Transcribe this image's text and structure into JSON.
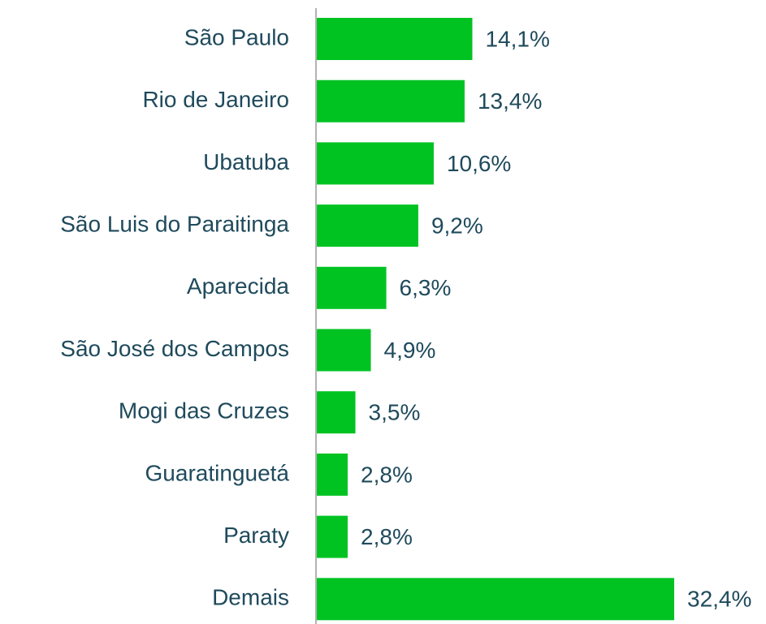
{
  "chart_data": {
    "type": "bar",
    "orientation": "horizontal",
    "categories": [
      "São Paulo",
      "Rio de Janeiro",
      "Ubatuba",
      "São Luis do Paraitinga",
      "Aparecida",
      "São José dos Campos",
      "Mogi das Cruzes",
      "Guaratinguetá",
      "Paraty",
      "Demais"
    ],
    "values": [
      14.1,
      13.4,
      10.6,
      9.2,
      6.3,
      4.9,
      3.5,
      2.8,
      2.8,
      32.4
    ],
    "value_labels": [
      "14,1%",
      "13,4%",
      "10,6%",
      "9,2%",
      "6,3%",
      "4,9%",
      "3,5%",
      "2,8%",
      "2,8%",
      "32,4%"
    ],
    "color": "#00c322"
  }
}
